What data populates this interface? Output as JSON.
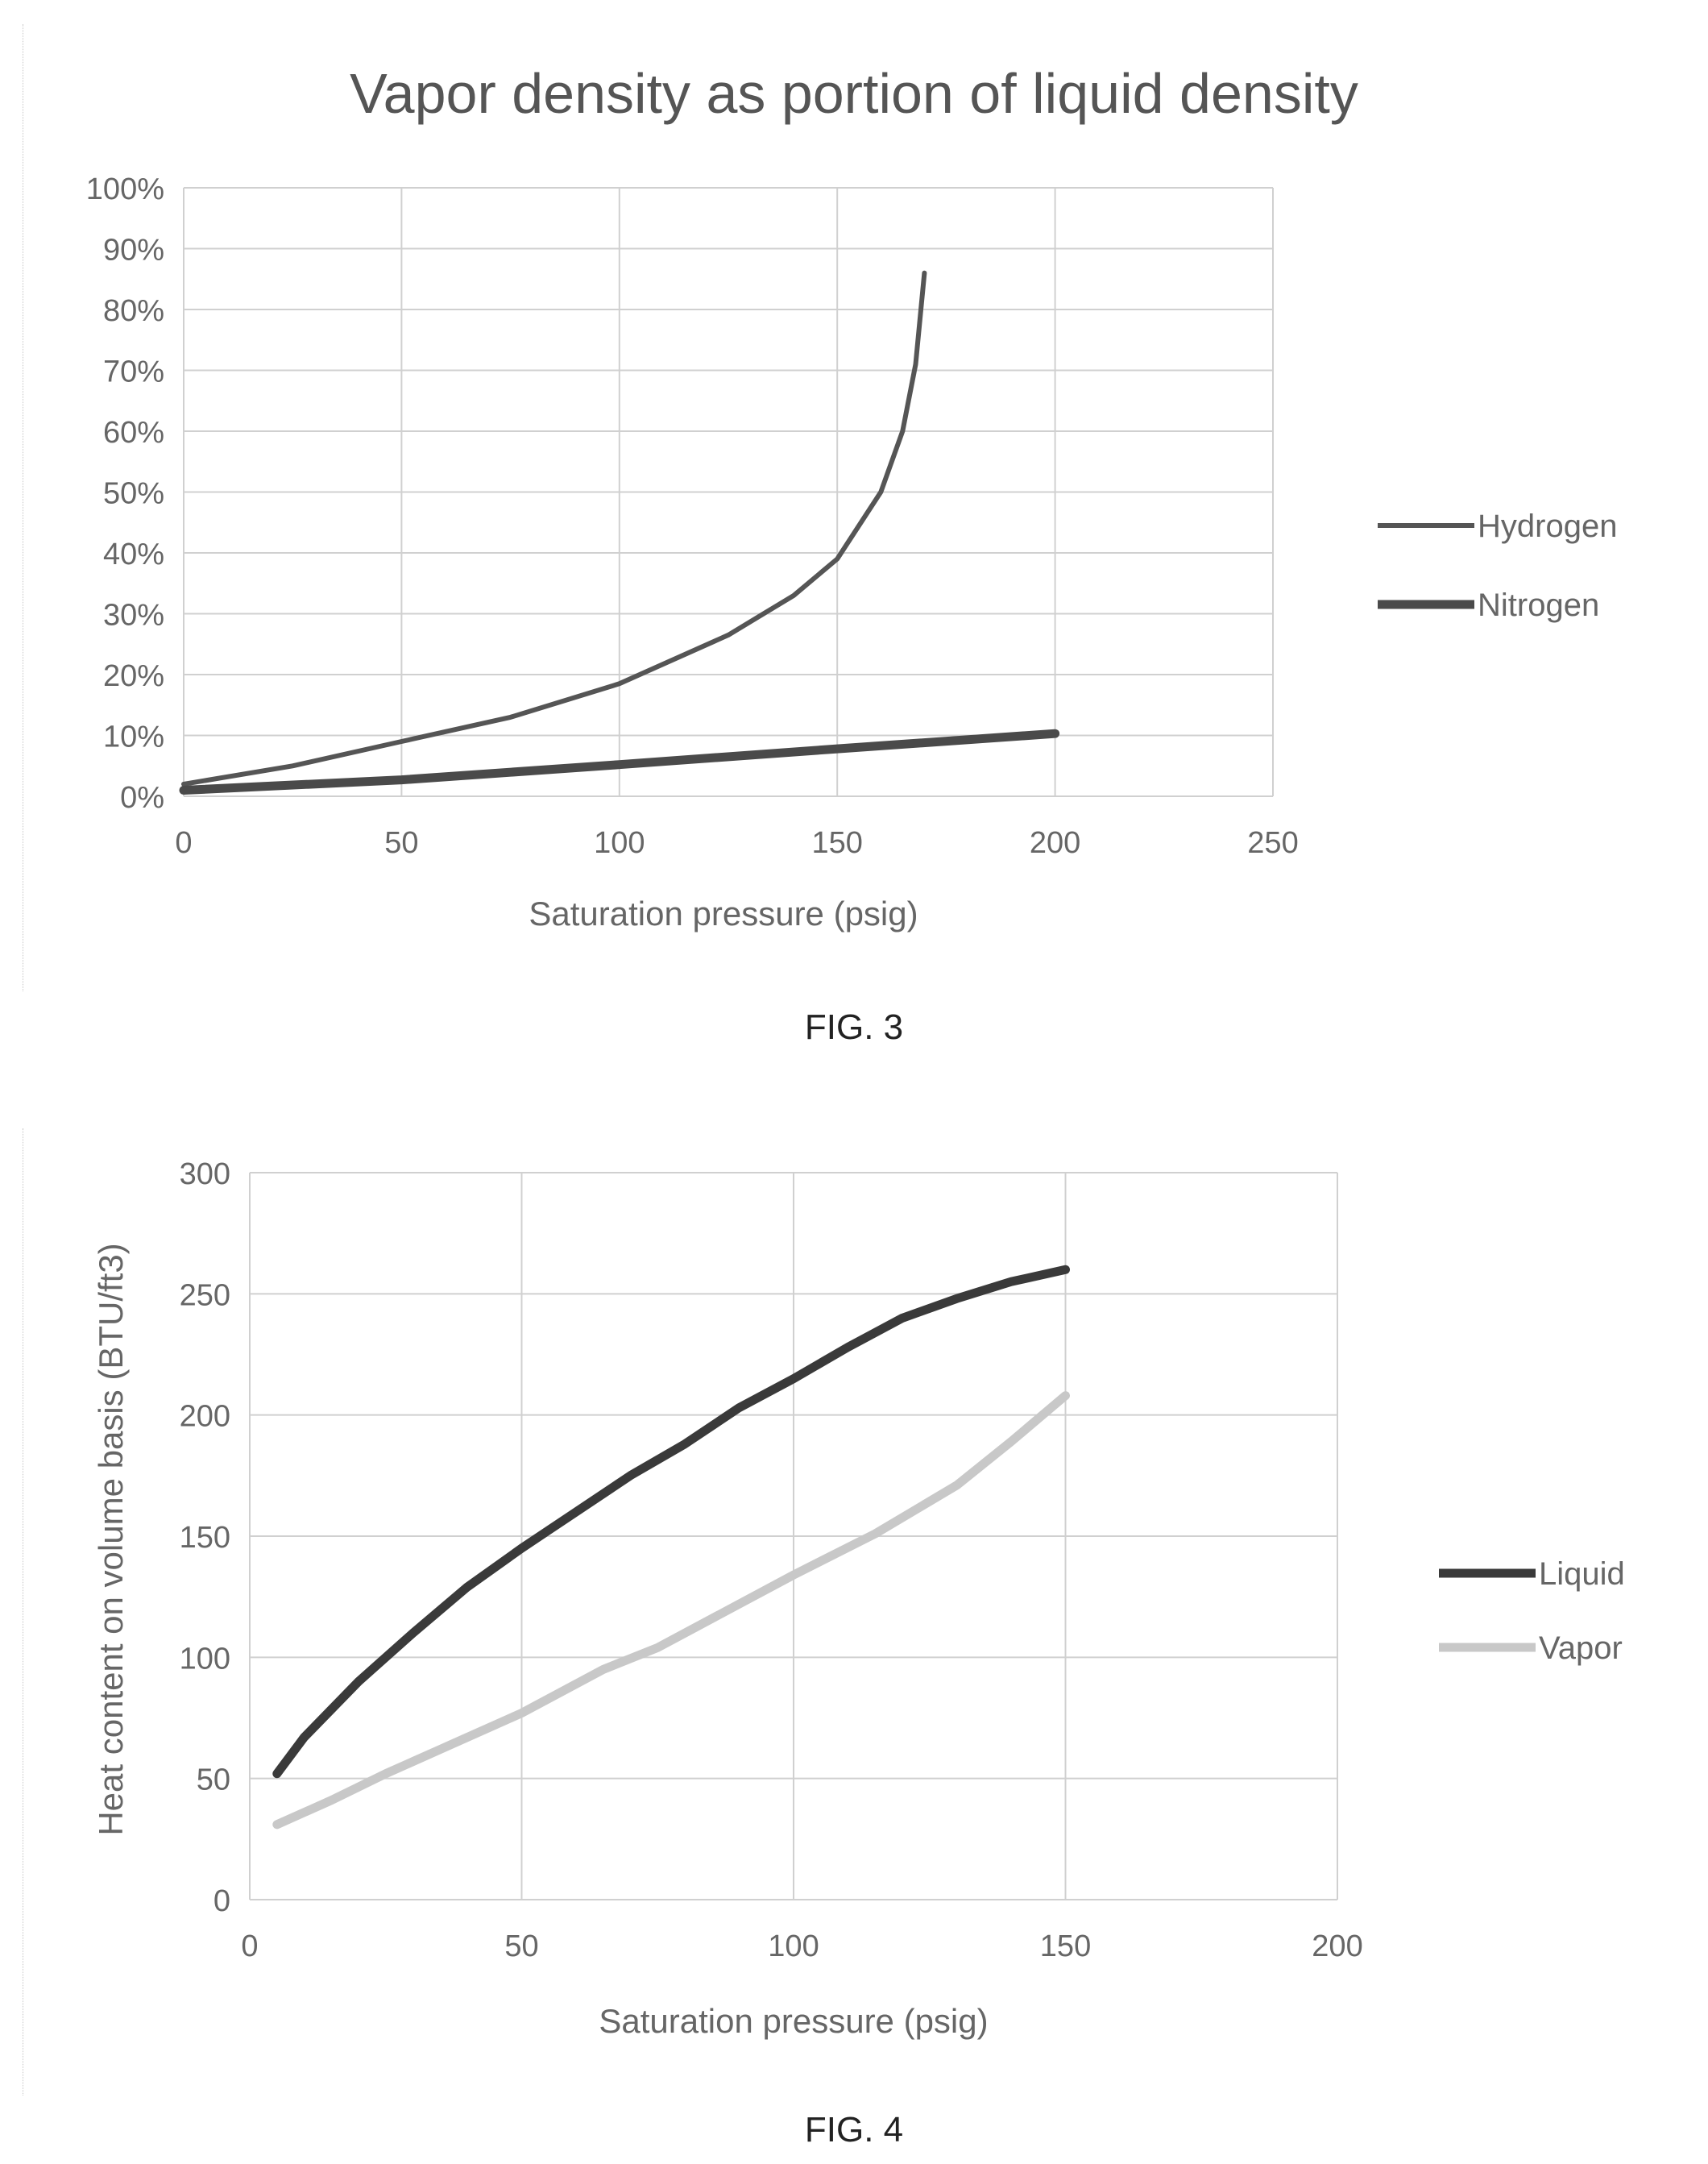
{
  "figures": [
    {
      "caption": "FIG. 3",
      "chart_data": {
        "type": "line",
        "title": "Vapor density as portion of liquid density",
        "xlabel": "Saturation pressure (psig)",
        "ylabel": "",
        "xlim": [
          0,
          250
        ],
        "ylim": [
          0,
          100
        ],
        "x_ticks": [
          0,
          50,
          100,
          150,
          200,
          250
        ],
        "y_ticks": [
          0,
          10,
          20,
          30,
          40,
          50,
          60,
          70,
          80,
          90,
          100
        ],
        "y_tick_format": "percent",
        "grid": true,
        "legend": "right",
        "series": [
          {
            "name": "Hydrogen",
            "color": "#555555",
            "stroke": "thin",
            "x": [
              0,
              25,
              50,
              75,
              100,
              125,
              140,
              150,
              160,
              165,
              168,
              170
            ],
            "y": [
              2,
              5,
              9,
              13,
              18.5,
              26.5,
              33,
              39,
              50,
              60,
              71,
              86
            ]
          },
          {
            "name": "Nitrogen",
            "color": "#4a4a4a",
            "stroke": "thick",
            "x": [
              0,
              50,
              100,
              150,
              200
            ],
            "y": [
              1,
              2.7,
              5.2,
              7.8,
              10.3
            ]
          }
        ]
      }
    },
    {
      "caption": "FIG. 4",
      "chart_data": {
        "type": "line",
        "title": "",
        "xlabel": "Saturation pressure (psig)",
        "ylabel": "Heat content on volume basis (BTU/ft3)",
        "xlim": [
          0,
          200
        ],
        "ylim": [
          0,
          300
        ],
        "x_ticks": [
          0,
          50,
          100,
          150,
          200
        ],
        "y_ticks": [
          0,
          50,
          100,
          150,
          200,
          250,
          300
        ],
        "y_tick_format": "number",
        "grid": true,
        "legend": "right",
        "series": [
          {
            "name": "Liquid",
            "color": "#3a3a3a",
            "stroke": "thick",
            "x": [
              5,
              10,
              20,
              30,
              40,
              50,
              60,
              70,
              80,
              90,
              100,
              110,
              120,
              130,
              140,
              150
            ],
            "y": [
              52,
              67,
              90,
              110,
              129,
              145,
              160,
              175,
              188,
              203,
              215,
              228,
              240,
              248,
              255,
              260
            ]
          },
          {
            "name": "Vapor",
            "color": "#c8c8c8",
            "stroke": "thick",
            "x": [
              5,
              15,
              25,
              35,
              50,
              65,
              75,
              90,
              100,
              115,
              130,
              140,
              150
            ],
            "y": [
              31,
              41,
              52,
              62,
              77,
              95,
              104,
              122,
              134,
              151,
              171,
              189,
              208
            ]
          }
        ]
      }
    }
  ]
}
